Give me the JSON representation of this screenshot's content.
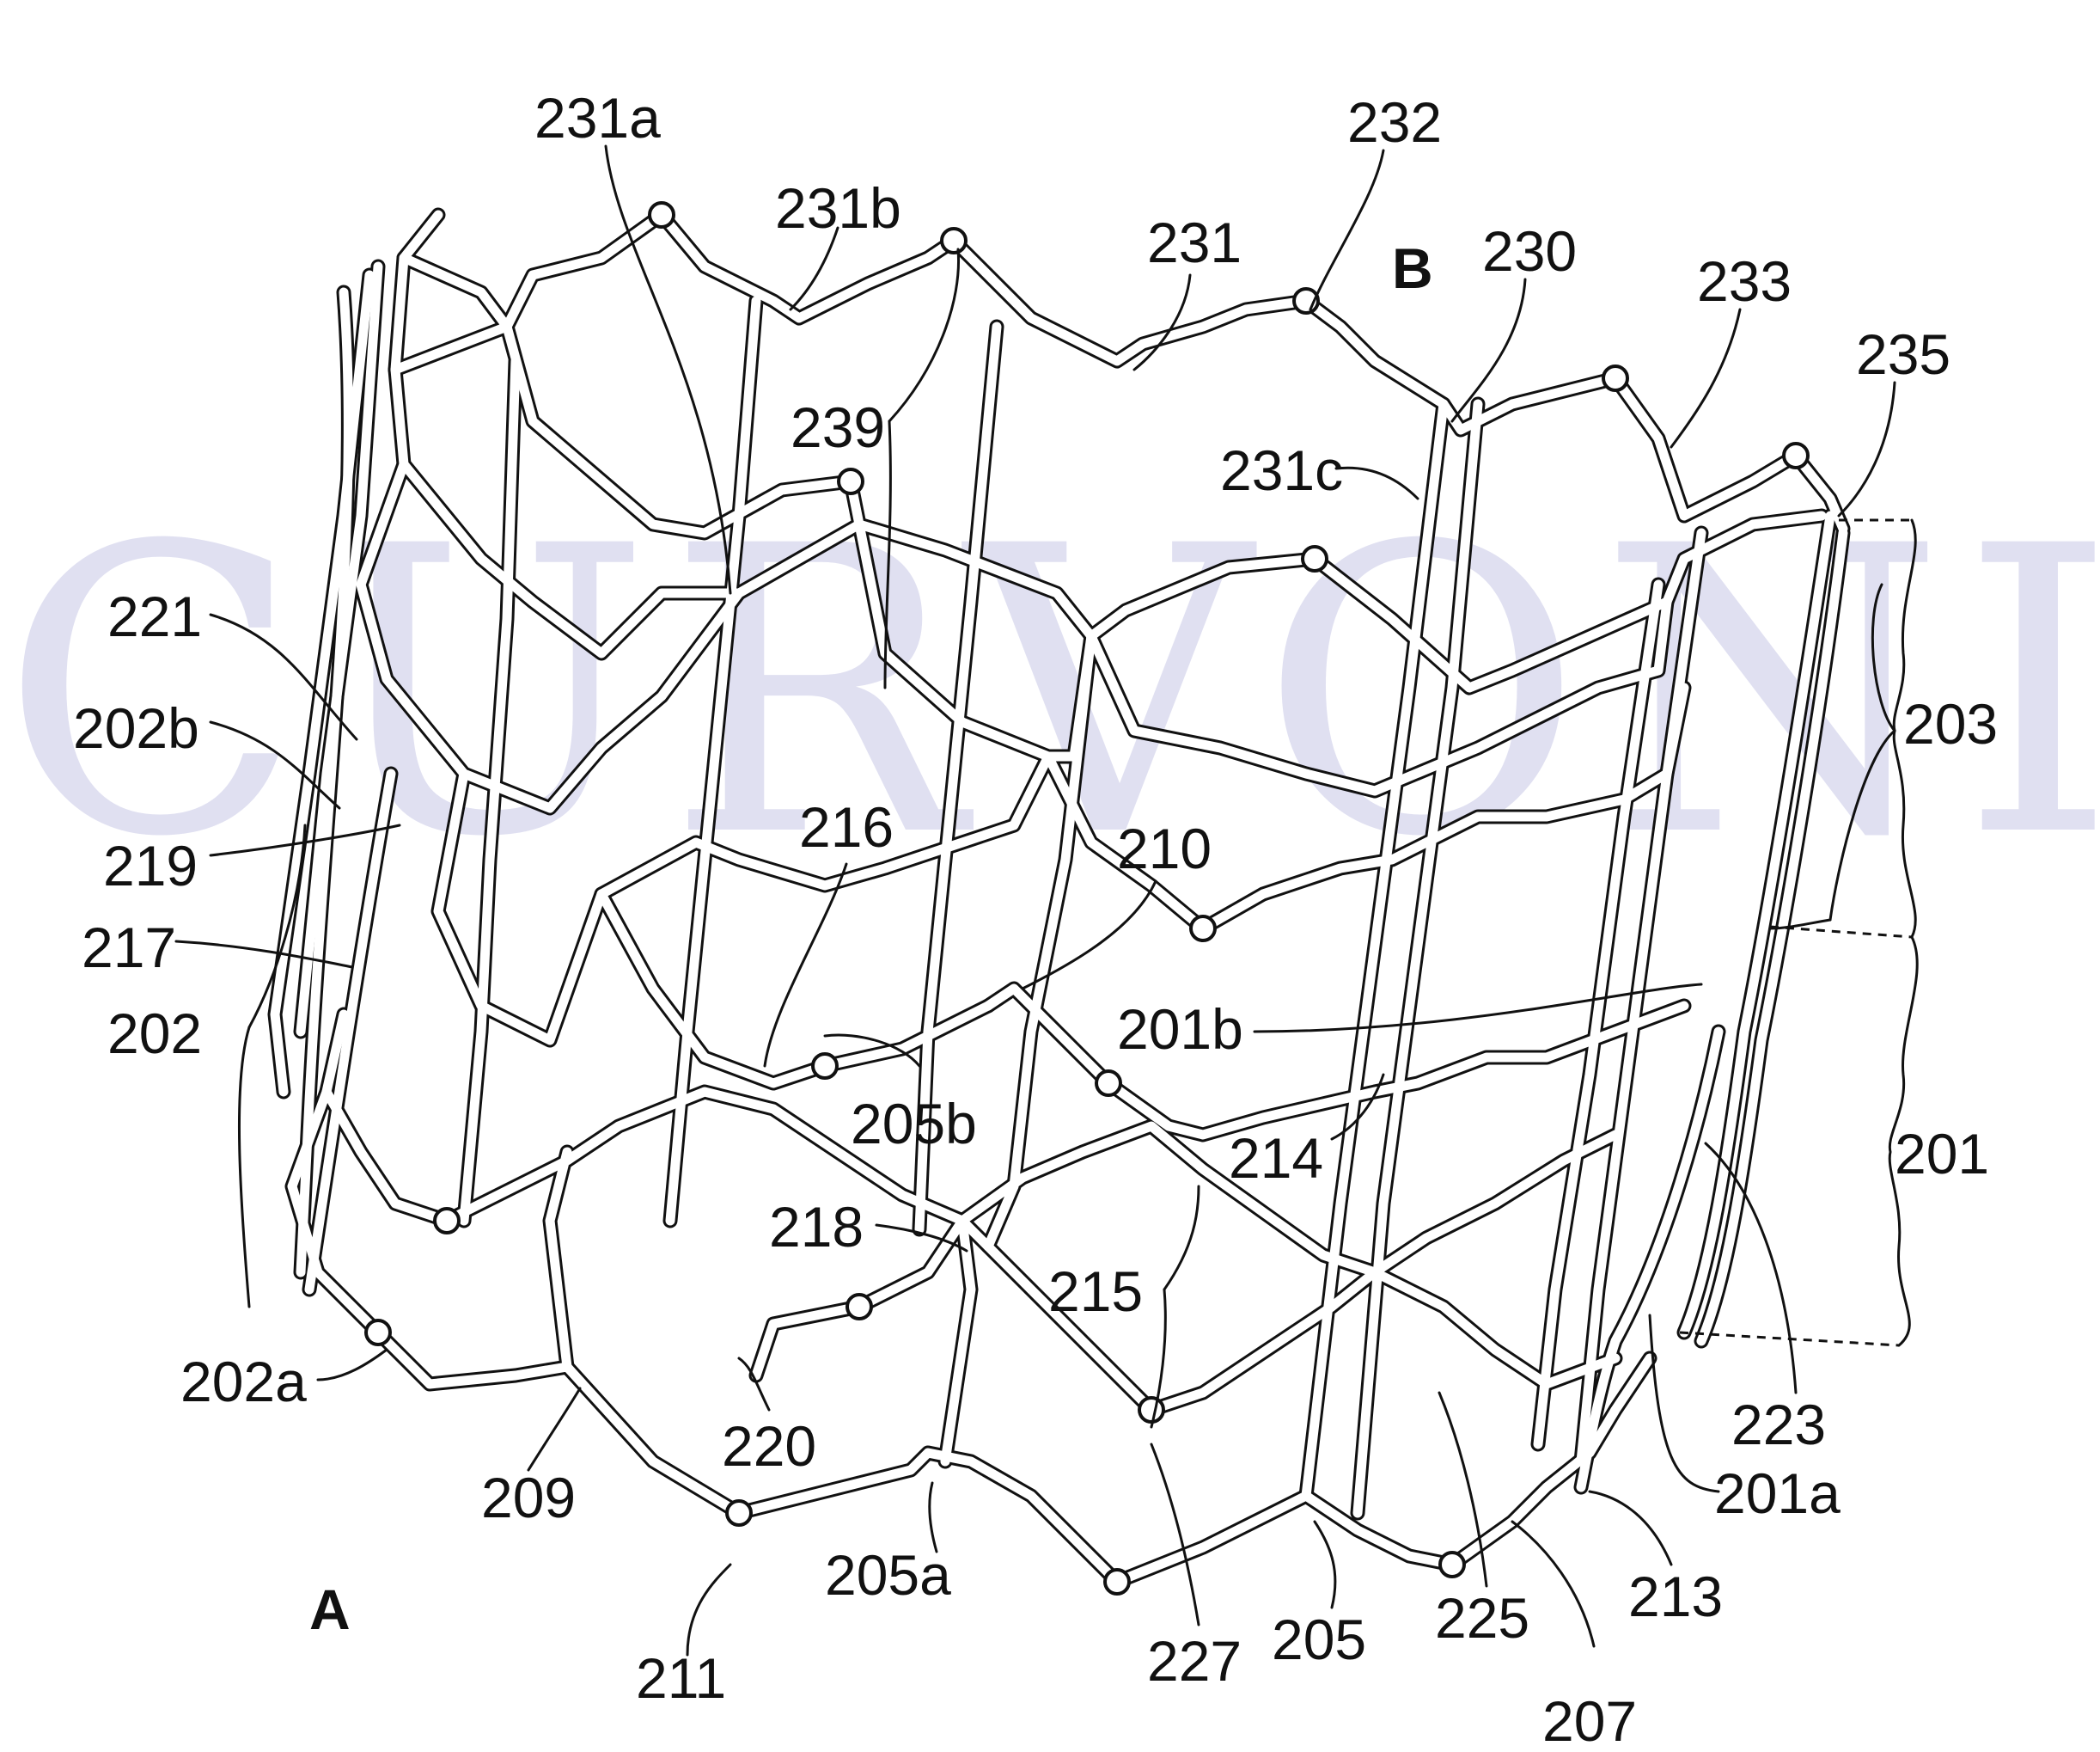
{
  "watermark": "CURVONIX",
  "view_labels": {
    "a": "A",
    "b": "B"
  },
  "references": {
    "r231a": "231a",
    "r231b": "231b",
    "r232": "232",
    "r231": "231",
    "r230": "230",
    "r233": "233",
    "r235": "235",
    "r239": "239",
    "r231c": "231c",
    "r221": "221",
    "r202b": "202b",
    "r219": "219",
    "r217": "217",
    "r202": "202",
    "r216": "216",
    "r210": "210",
    "r203": "203",
    "r201b": "201b",
    "r205b": "205b",
    "r214": "214",
    "r201": "201",
    "r218": "218",
    "r215": "215",
    "r223": "223",
    "r202a": "202a",
    "r220": "220",
    "r209": "209",
    "r201a": "201a",
    "r211": "211",
    "r205a": "205a",
    "r227": "227",
    "r205": "205",
    "r225": "225",
    "r213": "213",
    "r207": "207"
  },
  "colors": {
    "line": "#111111",
    "watermark": "#c7c7e6",
    "background": "#ffffff"
  }
}
